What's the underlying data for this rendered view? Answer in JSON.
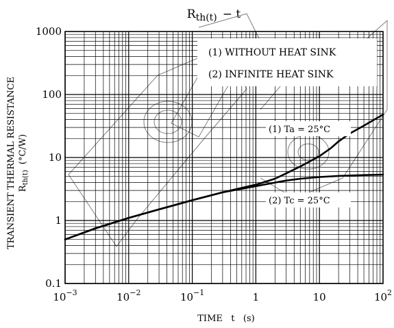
{
  "chart_data": {
    "type": "line",
    "title_main": "R",
    "title_sub": "th(t)",
    "title_suffix": "− t",
    "xlabel": "TIME   t   (s)",
    "ylabel_line1": "TRANSIENT THERMAL RESISTANCE",
    "ylabel_line2_main": "R",
    "ylabel_line2_sub": "th(t)",
    "ylabel_line2_suffix": "(°C/W)",
    "x_scale": "log",
    "y_scale": "log",
    "xlim": [
      0.001,
      100
    ],
    "ylim": [
      0.1,
      1000
    ],
    "grid": true,
    "x_ticks": [
      {
        "value": 0.001,
        "base": "10",
        "exp": "−3"
      },
      {
        "value": 0.01,
        "base": "10",
        "exp": "−2"
      },
      {
        "value": 0.1,
        "base": "10",
        "exp": "−1"
      },
      {
        "value": 1,
        "base": "1",
        "exp": ""
      },
      {
        "value": 10,
        "base": "10",
        "exp": ""
      },
      {
        "value": 100,
        "base": "10",
        "exp": "2"
      }
    ],
    "y_ticks": [
      {
        "value": 0.1,
        "label": "0.1"
      },
      {
        "value": 1,
        "label": "1"
      },
      {
        "value": 10,
        "label": "10"
      },
      {
        "value": 100,
        "label": "100"
      },
      {
        "value": 1000,
        "label": "1000"
      }
    ],
    "legend": {
      "placement": "top-right",
      "entries": [
        "(1) WITHOUT HEAT SINK",
        "(2) INFINITE HEAT SINK"
      ]
    },
    "series": [
      {
        "name": "(1)   Ta = 25°C",
        "x": [
          0.001,
          0.003,
          0.01,
          0.03,
          0.1,
          0.3,
          1,
          2,
          3,
          5,
          10,
          15,
          20,
          30,
          50,
          100
        ],
        "y": [
          0.5,
          0.75,
          1.1,
          1.5,
          2.1,
          2.8,
          3.7,
          4.6,
          5.6,
          7.2,
          10.5,
          14,
          18,
          24,
          32,
          48
        ]
      },
      {
        "name": "(2)   Tc = 25°C",
        "x": [
          0.001,
          0.003,
          0.01,
          0.03,
          0.1,
          0.3,
          1,
          2,
          3,
          5,
          10,
          20,
          50,
          100
        ],
        "y": [
          0.5,
          0.75,
          1.1,
          1.5,
          2.1,
          2.8,
          3.5,
          4.0,
          4.3,
          4.6,
          4.9,
          5.1,
          5.25,
          5.35
        ]
      }
    ]
  }
}
